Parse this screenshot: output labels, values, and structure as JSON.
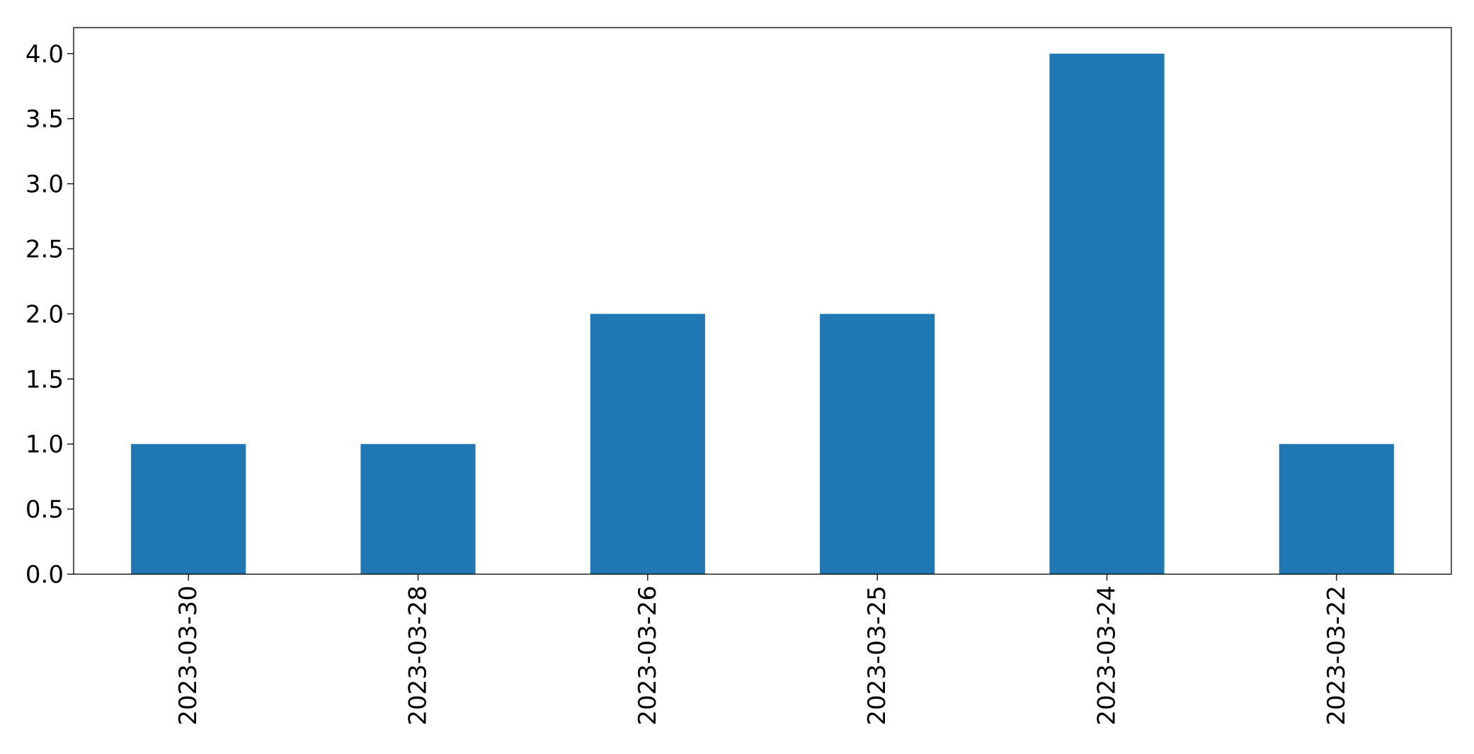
{
  "chart_data": {
    "type": "bar",
    "title": "",
    "xlabel": "",
    "ylabel": "",
    "categories": [
      "2023-03-30",
      "2023-03-28",
      "2023-03-26",
      "2023-03-25",
      "2023-03-24",
      "2023-03-22"
    ],
    "values": [
      1,
      1,
      2,
      2,
      4,
      1
    ],
    "ylim": [
      0,
      4.2
    ],
    "yticks": [
      "0.0",
      "0.5",
      "1.0",
      "1.5",
      "2.0",
      "2.5",
      "3.0",
      "3.5",
      "4.0"
    ],
    "bar_color": "#1f77b4",
    "x_tick_rotation": "vertical",
    "grid": false,
    "legend": "none"
  }
}
